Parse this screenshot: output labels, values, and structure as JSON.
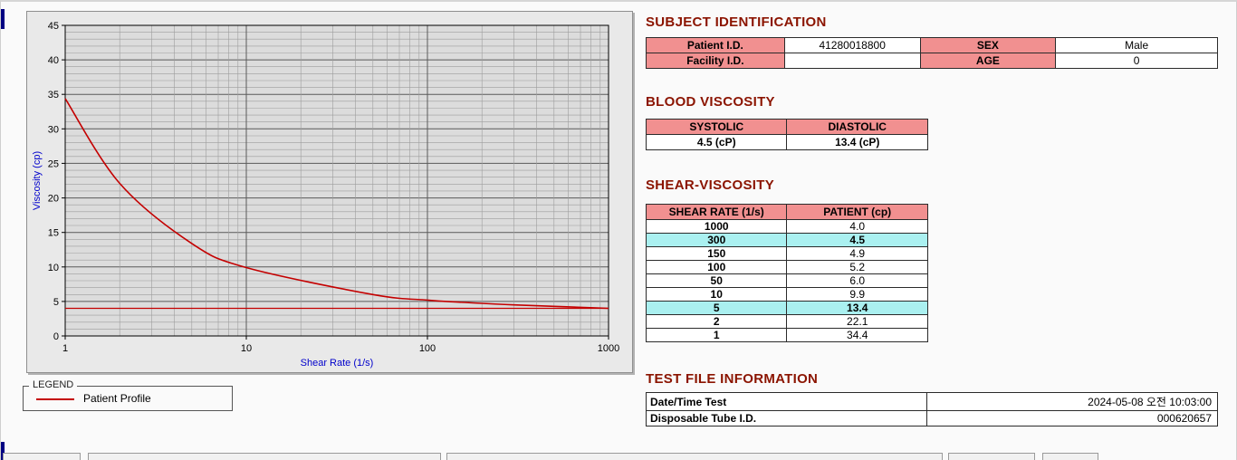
{
  "legend": {
    "box_label": "LEGEND",
    "series_label": "Patient Profile"
  },
  "subject_identification": {
    "title": "SUBJECT IDENTIFICATION",
    "rows": [
      {
        "label1": "Patient I.D.",
        "value1": "41280018800",
        "label2": "SEX",
        "value2": "Male"
      },
      {
        "label1": "Facility I.D.",
        "value1": "",
        "label2": "AGE",
        "value2": "0"
      }
    ]
  },
  "blood_viscosity": {
    "title": "BLOOD VISCOSITY",
    "headers": [
      "SYSTOLIC",
      "DIASTOLIC"
    ],
    "values": [
      "4.5 (cP)",
      "13.4 (cP)"
    ]
  },
  "shear_viscosity": {
    "title": "SHEAR-VISCOSITY",
    "headers": [
      "SHEAR RATE (1/s)",
      "PATIENT (cp)"
    ],
    "rows": [
      {
        "shear": "1000",
        "patient": "4.0",
        "highlight": false
      },
      {
        "shear": "300",
        "patient": "4.5",
        "highlight": true
      },
      {
        "shear": "150",
        "patient": "4.9",
        "highlight": false
      },
      {
        "shear": "100",
        "patient": "5.2",
        "highlight": false
      },
      {
        "shear": "50",
        "patient": "6.0",
        "highlight": false
      },
      {
        "shear": "10",
        "patient": "9.9",
        "highlight": false
      },
      {
        "shear": "5",
        "patient": "13.4",
        "highlight": true
      },
      {
        "shear": "2",
        "patient": "22.1",
        "highlight": false
      },
      {
        "shear": "1",
        "patient": "34.4",
        "highlight": false
      }
    ]
  },
  "test_file_information": {
    "title": "TEST FILE INFORMATION",
    "rows": [
      {
        "label": "Date/Time Test",
        "value": "2024-05-08  오전 10:03:00"
      },
      {
        "label": "Disposable Tube I.D.",
        "value": "000620657"
      }
    ]
  },
  "chart_data": {
    "type": "line",
    "title": "",
    "xlabel": "Shear Rate (1/s)",
    "ylabel": "Viscosity (cp)",
    "x_scale": "log",
    "xlim": [
      1,
      1000
    ],
    "ylim": [
      0,
      45
    ],
    "x_ticks": [
      1,
      10,
      100,
      1000
    ],
    "y_ticks": [
      0,
      5,
      10,
      15,
      20,
      25,
      30,
      35,
      40,
      45
    ],
    "grid": "on",
    "legend_position": "below-left",
    "series": [
      {
        "name": "Patient Profile",
        "color": "#c40000",
        "x": [
          1,
          2,
          5,
          10,
          50,
          100,
          150,
          300,
          1000
        ],
        "y": [
          34.4,
          22.1,
          13.4,
          9.9,
          6.0,
          5.2,
          4.9,
          4.5,
          4.0
        ]
      }
    ],
    "reference_line": {
      "y": 4.0,
      "color": "#c40000"
    }
  },
  "colors": {
    "section_header": "#8b1400",
    "table_label_bg": "#f19090",
    "highlight_bg": "#aaf0f0",
    "axis_label": "#0000cc",
    "series_red": "#c40000"
  }
}
